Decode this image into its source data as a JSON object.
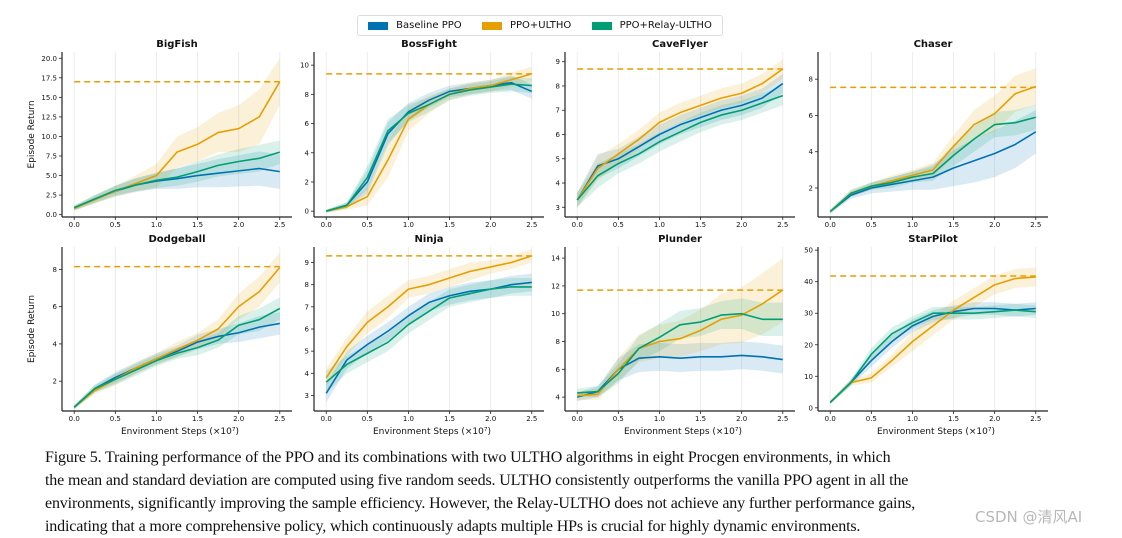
{
  "legend": [
    {
      "label": "Baseline PPO",
      "color": "#0072B2"
    },
    {
      "label": "PPO+ULTHO",
      "color": "#E69F00"
    },
    {
      "label": "PPO+Relay-ULTHO",
      "color": "#009E73"
    }
  ],
  "caption_lines": [
    "Figure 5.  Training performance of the PPO and its combinations with two ULTHO algorithms in eight Procgen environments, in which",
    "the mean and standard deviation are computed using five random seeds. ULTHO consistently outperforms the vanilla PPO agent in all the",
    "environments, significantly improving the sample efficiency. However, the Relay-ULTHO does not achieve any further performance gains,",
    "indicating that a more comprehensive policy, which continuously adapts multiple HPs is crucial for highly dynamic environments."
  ],
  "watermark": "CSDN @清风AI",
  "chart_data": [
    {
      "type": "line",
      "title": "BigFish",
      "ylabel": "Episode Return",
      "xlabel": "",
      "xlim": [
        -0.1,
        2.6
      ],
      "ylim": [
        -0.3,
        20.8
      ],
      "xticks": [
        "0.0",
        "0.5",
        "1.0",
        "1.5",
        "2.0",
        "2.5"
      ],
      "yticks": [
        "0.0",
        "2.5",
        "5.0",
        "7.5",
        "10.0",
        "12.5",
        "15.0",
        "17.5",
        "20.0"
      ],
      "ytick_values": [
        0,
        2.5,
        5,
        7.5,
        10,
        12.5,
        15,
        17.5,
        20
      ],
      "x": [
        0,
        0.25,
        0.5,
        0.75,
        1,
        1.25,
        1.5,
        1.75,
        2,
        2.25,
        2.5
      ],
      "reference_line": 17.0,
      "series": [
        {
          "name": "Baseline PPO",
          "values": [
            0.8,
            2.0,
            3.0,
            3.8,
            4.3,
            4.6,
            5.0,
            5.3,
            5.6,
            5.9,
            5.5
          ],
          "std": [
            0.3,
            0.5,
            0.7,
            0.9,
            1.0,
            1.3,
            1.5,
            1.8,
            2.0,
            2.2,
            2.2
          ]
        },
        {
          "name": "PPO+ULTHO",
          "values": [
            0.8,
            1.9,
            3.0,
            4.0,
            5.0,
            8.0,
            9.0,
            10.5,
            11.0,
            12.5,
            17.0
          ],
          "std": [
            0.3,
            0.5,
            0.7,
            1.0,
            1.5,
            2.0,
            2.2,
            2.5,
            3.0,
            3.5,
            3.0
          ]
        },
        {
          "name": "PPO+Relay-ULTHO",
          "values": [
            0.9,
            2.0,
            3.1,
            3.8,
            4.4,
            4.8,
            5.5,
            6.3,
            6.8,
            7.2,
            8.0
          ],
          "std": [
            0.3,
            0.5,
            0.6,
            0.8,
            1.0,
            1.1,
            1.3,
            1.4,
            1.6,
            1.7,
            1.5
          ]
        }
      ]
    },
    {
      "type": "line",
      "title": "BossFight",
      "ylabel": "",
      "xlabel": "",
      "xlim": [
        -0.1,
        2.6
      ],
      "ylim": [
        -0.4,
        10.9
      ],
      "xticks": [
        "0.0",
        "0.5",
        "1.0",
        "1.5",
        "2.0",
        "2.5"
      ],
      "yticks": [
        "0",
        "2",
        "4",
        "6",
        "8",
        "10"
      ],
      "ytick_values": [
        0,
        2,
        4,
        6,
        8,
        10
      ],
      "x": [
        0,
        0.25,
        0.5,
        0.75,
        1,
        1.25,
        1.5,
        1.75,
        2,
        2.25,
        2.5
      ],
      "reference_line": 9.4,
      "series": [
        {
          "name": "Baseline PPO",
          "values": [
            0.0,
            0.4,
            2.0,
            5.3,
            6.8,
            7.6,
            8.2,
            8.4,
            8.6,
            8.8,
            8.2
          ],
          "std": [
            0.1,
            0.2,
            0.8,
            0.8,
            0.6,
            0.5,
            0.4,
            0.4,
            0.4,
            0.5,
            0.5
          ]
        },
        {
          "name": "PPO+ULTHO",
          "values": [
            0.0,
            0.3,
            1.0,
            3.5,
            6.3,
            7.3,
            8.0,
            8.4,
            8.6,
            9.0,
            9.4
          ],
          "std": [
            0.1,
            0.2,
            0.6,
            1.2,
            0.8,
            0.6,
            0.4,
            0.4,
            0.4,
            0.5,
            0.5
          ]
        },
        {
          "name": "PPO+Relay-ULTHO",
          "values": [
            0.0,
            0.4,
            2.3,
            5.5,
            6.7,
            7.3,
            8.0,
            8.3,
            8.5,
            8.7,
            8.6
          ],
          "std": [
            0.1,
            0.2,
            0.8,
            0.8,
            0.6,
            0.5,
            0.4,
            0.4,
            0.4,
            0.5,
            0.5
          ]
        }
      ]
    },
    {
      "type": "line",
      "title": "CaveFlyer",
      "ylabel": "",
      "xlabel": "",
      "xlim": [
        -0.1,
        2.6
      ],
      "ylim": [
        2.6,
        9.4
      ],
      "xticks": [
        "0.0",
        "0.5",
        "1.0",
        "1.5",
        "2.0",
        "2.5"
      ],
      "yticks": [
        "3",
        "4",
        "5",
        "6",
        "7",
        "8",
        "9"
      ],
      "ytick_values": [
        3,
        4,
        5,
        6,
        7,
        8,
        9
      ],
      "x": [
        0,
        0.25,
        0.5,
        0.75,
        1,
        1.25,
        1.5,
        1.75,
        2,
        2.25,
        2.5
      ],
      "reference_line": 8.7,
      "series": [
        {
          "name": "Baseline PPO",
          "values": [
            3.3,
            4.7,
            5.0,
            5.5,
            6.0,
            6.4,
            6.7,
            7.0,
            7.2,
            7.5,
            8.1
          ],
          "std": [
            0.3,
            0.5,
            0.4,
            0.4,
            0.4,
            0.4,
            0.4,
            0.4,
            0.4,
            0.4,
            0.4
          ]
        },
        {
          "name": "PPO+ULTHO",
          "values": [
            3.3,
            4.6,
            5.2,
            5.8,
            6.5,
            6.9,
            7.2,
            7.5,
            7.7,
            8.1,
            8.7
          ],
          "std": [
            0.3,
            0.5,
            0.4,
            0.4,
            0.4,
            0.4,
            0.4,
            0.4,
            0.4,
            0.4,
            0.4
          ]
        },
        {
          "name": "PPO+Relay-ULTHO",
          "values": [
            3.3,
            4.3,
            4.8,
            5.2,
            5.7,
            6.1,
            6.5,
            6.8,
            7.0,
            7.3,
            7.6
          ],
          "std": [
            0.3,
            0.5,
            0.4,
            0.4,
            0.4,
            0.4,
            0.4,
            0.4,
            0.4,
            0.4,
            0.4
          ]
        }
      ]
    },
    {
      "type": "line",
      "title": "Chaser",
      "ylabel": "",
      "xlabel": "",
      "xlim": [
        -0.1,
        2.6
      ],
      "ylim": [
        0.4,
        9.5
      ],
      "xticks": [
        "0.0",
        "0.5",
        "1.0",
        "1.5",
        "2.0",
        "2.5"
      ],
      "yticks": [
        "2",
        "4",
        "6",
        "8"
      ],
      "ytick_values": [
        2,
        4,
        6,
        8
      ],
      "x": [
        0,
        0.25,
        0.5,
        0.75,
        1,
        1.25,
        1.5,
        1.75,
        2,
        2.25,
        2.5
      ],
      "reference_line": 7.55,
      "series": [
        {
          "name": "Baseline PPO",
          "values": [
            0.7,
            1.6,
            2.0,
            2.2,
            2.4,
            2.6,
            3.1,
            3.5,
            3.9,
            4.4,
            5.1
          ],
          "std": [
            0.1,
            0.2,
            0.3,
            0.4,
            0.5,
            0.7,
            1.0,
            1.2,
            1.3,
            1.3,
            1.2
          ]
        },
        {
          "name": "PPO+ULTHO",
          "values": [
            0.7,
            1.7,
            2.1,
            2.4,
            2.7,
            3.0,
            4.3,
            5.5,
            6.1,
            7.2,
            7.6
          ],
          "std": [
            0.1,
            0.2,
            0.2,
            0.3,
            0.3,
            0.4,
            0.6,
            0.8,
            1.0,
            1.0,
            1.0
          ]
        },
        {
          "name": "PPO+Relay-ULTHO",
          "values": [
            0.7,
            1.7,
            2.1,
            2.3,
            2.6,
            2.8,
            3.8,
            4.7,
            5.5,
            5.6,
            5.9
          ],
          "std": [
            0.1,
            0.2,
            0.2,
            0.3,
            0.3,
            0.4,
            0.6,
            0.7,
            0.7,
            0.7,
            0.7
          ]
        }
      ]
    },
    {
      "type": "line",
      "title": "Dodgeball",
      "ylabel": "Episode Return",
      "xlabel": "Environment Steps (×10⁷)",
      "xlim": [
        -0.1,
        2.6
      ],
      "ylim": [
        0.4,
        9.2
      ],
      "xticks": [
        "0.0",
        "0.5",
        "1.0",
        "1.5",
        "2.0",
        "2.5"
      ],
      "yticks": [
        "2",
        "4",
        "6",
        "8"
      ],
      "ytick_values": [
        2,
        4,
        6,
        8
      ],
      "x": [
        0,
        0.25,
        0.5,
        0.75,
        1,
        1.25,
        1.5,
        1.75,
        2,
        2.25,
        2.5
      ],
      "reference_line": 8.15,
      "series": [
        {
          "name": "Baseline PPO",
          "values": [
            0.6,
            1.6,
            2.2,
            2.7,
            3.2,
            3.6,
            4.1,
            4.4,
            4.6,
            4.9,
            5.1
          ],
          "std": [
            0.1,
            0.2,
            0.3,
            0.3,
            0.3,
            0.3,
            0.4,
            0.4,
            0.5,
            0.6,
            0.6
          ]
        },
        {
          "name": "PPO+ULTHO",
          "values": [
            0.6,
            1.5,
            2.1,
            2.7,
            3.2,
            3.7,
            4.2,
            4.8,
            6.0,
            6.8,
            8.1
          ],
          "std": [
            0.1,
            0.2,
            0.3,
            0.3,
            0.3,
            0.4,
            0.4,
            0.5,
            0.7,
            0.8,
            0.8
          ]
        },
        {
          "name": "PPO+Relay-ULTHO",
          "values": [
            0.6,
            1.6,
            2.1,
            2.6,
            3.1,
            3.5,
            3.8,
            4.2,
            5.0,
            5.3,
            5.9
          ],
          "std": [
            0.1,
            0.2,
            0.3,
            0.3,
            0.3,
            0.3,
            0.4,
            0.4,
            0.5,
            0.6,
            0.6
          ]
        }
      ]
    },
    {
      "type": "line",
      "title": "Ninja",
      "ylabel": "",
      "xlabel": "Environment Steps (×10⁷)",
      "xlim": [
        -0.1,
        2.6
      ],
      "ylim": [
        2.3,
        9.7
      ],
      "xticks": [
        "0.0",
        "0.5",
        "1.0",
        "1.5",
        "2.0",
        "2.5"
      ],
      "yticks": [
        "3",
        "4",
        "5",
        "6",
        "7",
        "8",
        "9"
      ],
      "ytick_values": [
        3,
        4,
        5,
        6,
        7,
        8,
        9
      ],
      "x": [
        0,
        0.25,
        0.5,
        0.75,
        1,
        1.25,
        1.5,
        1.75,
        2,
        2.25,
        2.5
      ],
      "reference_line": 9.3,
      "series": [
        {
          "name": "Baseline PPO",
          "values": [
            3.1,
            4.6,
            5.3,
            5.9,
            6.6,
            7.2,
            7.5,
            7.7,
            7.8,
            8.0,
            8.1
          ],
          "std": [
            0.4,
            0.4,
            0.4,
            0.4,
            0.4,
            0.4,
            0.4,
            0.4,
            0.4,
            0.4,
            0.4
          ]
        },
        {
          "name": "PPO+ULTHO",
          "values": [
            3.8,
            5.2,
            6.3,
            7.0,
            7.8,
            8.0,
            8.3,
            8.6,
            8.8,
            9.0,
            9.3
          ],
          "std": [
            0.4,
            0.4,
            0.5,
            0.5,
            0.4,
            0.4,
            0.4,
            0.4,
            0.3,
            0.3,
            0.3
          ]
        },
        {
          "name": "PPO+Relay-ULTHO",
          "values": [
            3.6,
            4.4,
            4.9,
            5.4,
            6.2,
            6.8,
            7.4,
            7.6,
            7.8,
            7.9,
            7.9
          ],
          "std": [
            0.5,
            0.4,
            0.4,
            0.4,
            0.4,
            0.4,
            0.4,
            0.4,
            0.4,
            0.4,
            0.4
          ]
        }
      ]
    },
    {
      "type": "line",
      "title": "Plunder",
      "ylabel": "",
      "xlabel": "Environment Steps (×10⁷)",
      "xlim": [
        -0.1,
        2.6
      ],
      "ylim": [
        3.0,
        14.8
      ],
      "xticks": [
        "0.0",
        "0.5",
        "1.0",
        "1.5",
        "2.0",
        "2.5"
      ],
      "yticks": [
        "4",
        "6",
        "8",
        "10",
        "12",
        "14"
      ],
      "ytick_values": [
        4,
        6,
        8,
        10,
        12,
        14
      ],
      "x": [
        0,
        0.25,
        0.5,
        0.75,
        1,
        1.25,
        1.5,
        1.75,
        2,
        2.25,
        2.5
      ],
      "reference_line": 11.7,
      "series": [
        {
          "name": "Baseline PPO",
          "values": [
            4.0,
            4.4,
            6.0,
            6.8,
            6.9,
            6.8,
            6.9,
            6.9,
            7.0,
            6.9,
            6.7
          ],
          "std": [
            0.3,
            0.4,
            0.8,
            1.0,
            1.0,
            1.0,
            1.0,
            1.0,
            1.0,
            1.0,
            1.0
          ]
        },
        {
          "name": "PPO+ULTHO",
          "values": [
            4.1,
            4.2,
            6.0,
            7.5,
            8.0,
            8.2,
            8.8,
            9.6,
            9.9,
            10.7,
            11.7
          ],
          "std": [
            0.3,
            0.4,
            0.8,
            1.0,
            1.2,
            1.3,
            1.5,
            1.8,
            2.0,
            2.2,
            2.3
          ]
        },
        {
          "name": "PPO+Relay-ULTHO",
          "values": [
            4.3,
            4.4,
            5.7,
            7.5,
            8.3,
            9.2,
            9.4,
            9.9,
            10.0,
            9.6,
            9.6
          ],
          "std": [
            0.3,
            0.4,
            0.7,
            0.9,
            1.0,
            1.0,
            1.0,
            1.0,
            1.1,
            1.2,
            1.2
          ]
        }
      ]
    },
    {
      "type": "line",
      "title": "StarPilot",
      "ylabel": "",
      "xlabel": "Environment Steps (×10⁷)",
      "xlim": [
        -0.1,
        2.6
      ],
      "ylim": [
        -1,
        51
      ],
      "xticks": [
        "0.0",
        "0.5",
        "1.0",
        "1.5",
        "2.0",
        "2.5"
      ],
      "yticks": [
        "0",
        "10",
        "20",
        "30",
        "40",
        "50"
      ],
      "ytick_values": [
        0,
        10,
        20,
        30,
        40,
        50
      ],
      "x": [
        0,
        0.25,
        0.5,
        0.75,
        1,
        1.25,
        1.5,
        1.75,
        2,
        2.25,
        2.5
      ],
      "reference_line": 41.8,
      "series": [
        {
          "name": "Baseline PPO",
          "values": [
            1.7,
            8,
            15,
            21,
            26,
            29,
            30.5,
            31.5,
            31.5,
            31,
            31.5
          ],
          "std": [
            0.5,
            1,
            2,
            2,
            2,
            2,
            2,
            2,
            2,
            2,
            2
          ]
        },
        {
          "name": "PPO+ULTHO",
          "values": [
            1.7,
            8,
            9.5,
            15,
            21,
            26,
            31,
            35,
            39,
            41,
            41.5
          ],
          "std": [
            0.5,
            1,
            1.5,
            2,
            3,
            3,
            3,
            3,
            3,
            3,
            3
          ]
        },
        {
          "name": "PPO+Relay-ULTHO",
          "values": [
            1.7,
            8,
            17,
            23.5,
            27,
            30,
            30,
            30,
            30.5,
            31,
            30.5
          ],
          "std": [
            0.5,
            1,
            2,
            2,
            2,
            2,
            2,
            2,
            2,
            2,
            2
          ]
        }
      ]
    }
  ]
}
